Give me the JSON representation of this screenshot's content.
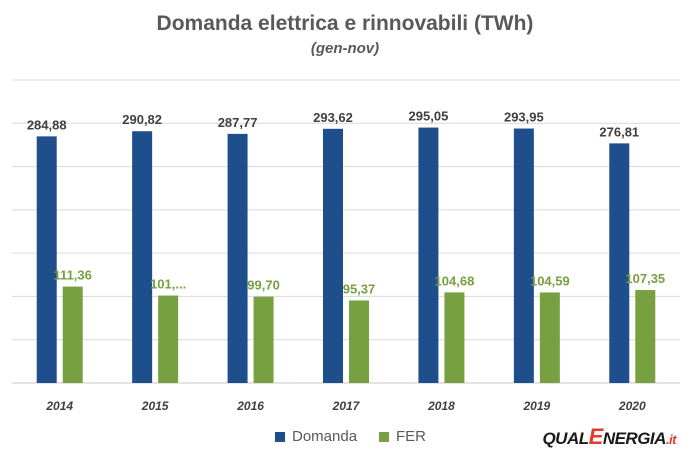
{
  "chart_data": {
    "type": "bar",
    "title": "Domanda elettrica e rinnovabili (TWh)",
    "subtitle": "(gen-nov)",
    "categories": [
      "2014",
      "2015",
      "2016",
      "2017",
      "2018",
      "2019",
      "2020"
    ],
    "series": [
      {
        "name": "Domanda",
        "color": "#1f4e8c",
        "values": [
          284.88,
          290.82,
          287.77,
          293.62,
          295.05,
          293.95,
          276.81
        ],
        "labels": [
          "284,88",
          "290,82",
          "287,77",
          "293,62",
          "295,05",
          "293,95",
          "276,81"
        ]
      },
      {
        "name": "FER",
        "color": "#77a040",
        "values": [
          111.36,
          101.0,
          99.7,
          95.37,
          104.68,
          104.59,
          107.35
        ],
        "labels": [
          "111,36",
          "101,...",
          "99,70",
          "95,37",
          "104,68",
          "104,59",
          "107,35"
        ]
      }
    ],
    "ylim": [
      0,
      350
    ],
    "gridlines": true,
    "legend_position": "bottom",
    "label_colors": {
      "Domanda": "#404040",
      "FER": "#77a040"
    }
  },
  "branding": {
    "logo_prefix": "QUAL",
    "logo_e": "E",
    "logo_suffix": "NERGIA",
    "logo_tld": ".it"
  }
}
